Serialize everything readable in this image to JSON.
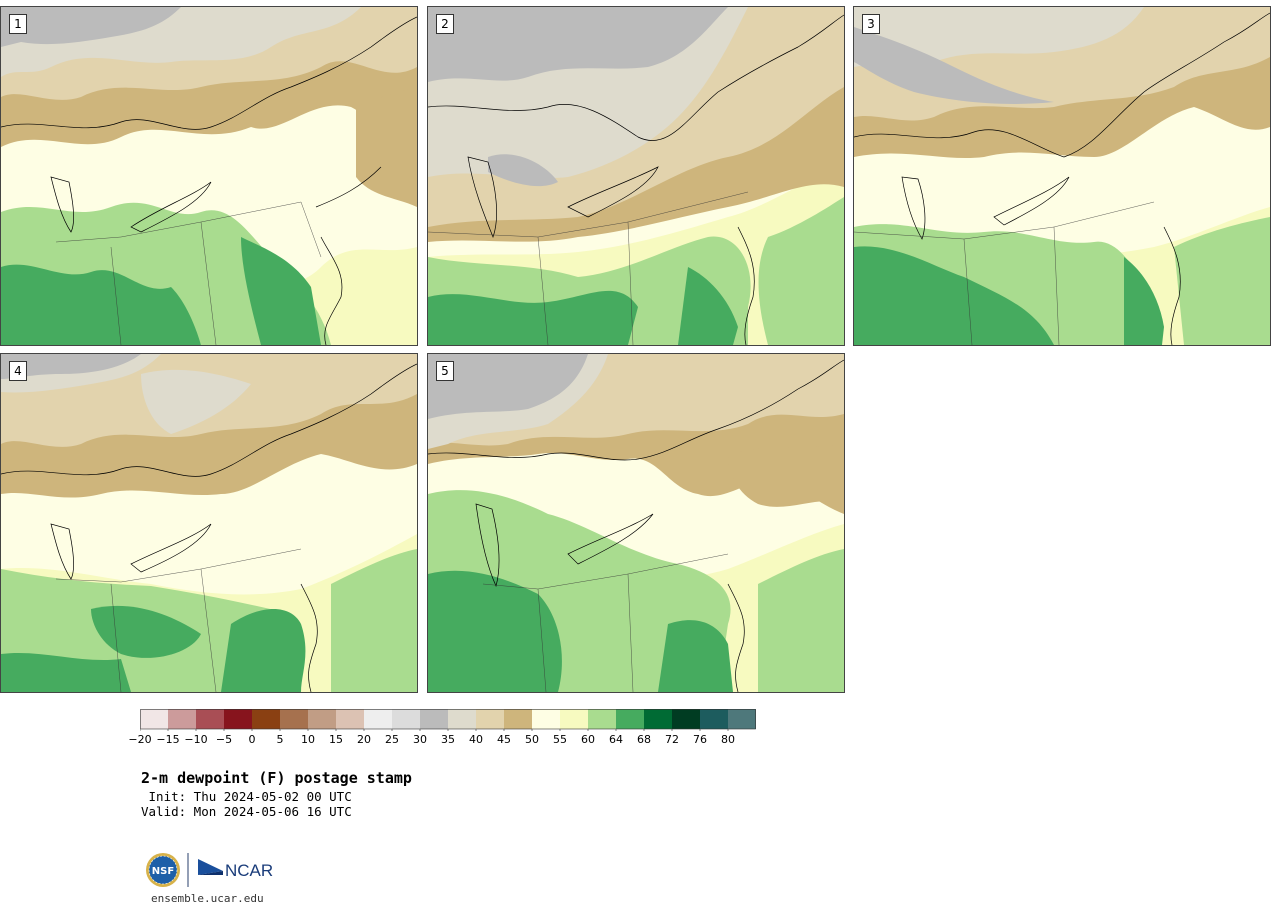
{
  "colors": {
    "categories": [
      "#f1e6e6",
      "#cc9b9b",
      "#a94e55",
      "#87141d",
      "#8a4012",
      "#a6714e",
      "#c19d85",
      "#dcc2b3",
      "#eeeeee",
      "#dcdcdc",
      "#bbbbbb",
      "#dedbcd",
      "#e2d3ad",
      "#ceb57c",
      "#fefee4",
      "#f7fac0",
      "#a9dc8f",
      "#46ab5f",
      "#006b34",
      "#003c22",
      "#1d5c5e",
      "#4e787b"
    ]
  },
  "colorbar": {
    "tick_labels": [
      "−20",
      "−15",
      "−10",
      "−5",
      "0",
      "5",
      "10",
      "15",
      "20",
      "25",
      "30",
      "35",
      "40",
      "45",
      "50",
      "55",
      "60",
      "64",
      "68",
      "72",
      "76",
      "80"
    ]
  },
  "panels": [
    {
      "id": "panel-1",
      "label": "1"
    },
    {
      "id": "panel-2",
      "label": "2"
    },
    {
      "id": "panel-3",
      "label": "3"
    },
    {
      "id": "panel-4",
      "label": "4"
    },
    {
      "id": "panel-5",
      "label": "5"
    }
  ],
  "title_block": {
    "title": "2-m dewpoint (F) postage stamp",
    "init": " Init: Thu 2024-05-02 00 UTC",
    "valid": "Valid: Mon 2024-05-06 16 UTC"
  },
  "logo": {
    "nsf_text": "NSF",
    "ncar_text": "NCAR"
  },
  "footer": {
    "url": "ensemble.ucar.edu"
  }
}
